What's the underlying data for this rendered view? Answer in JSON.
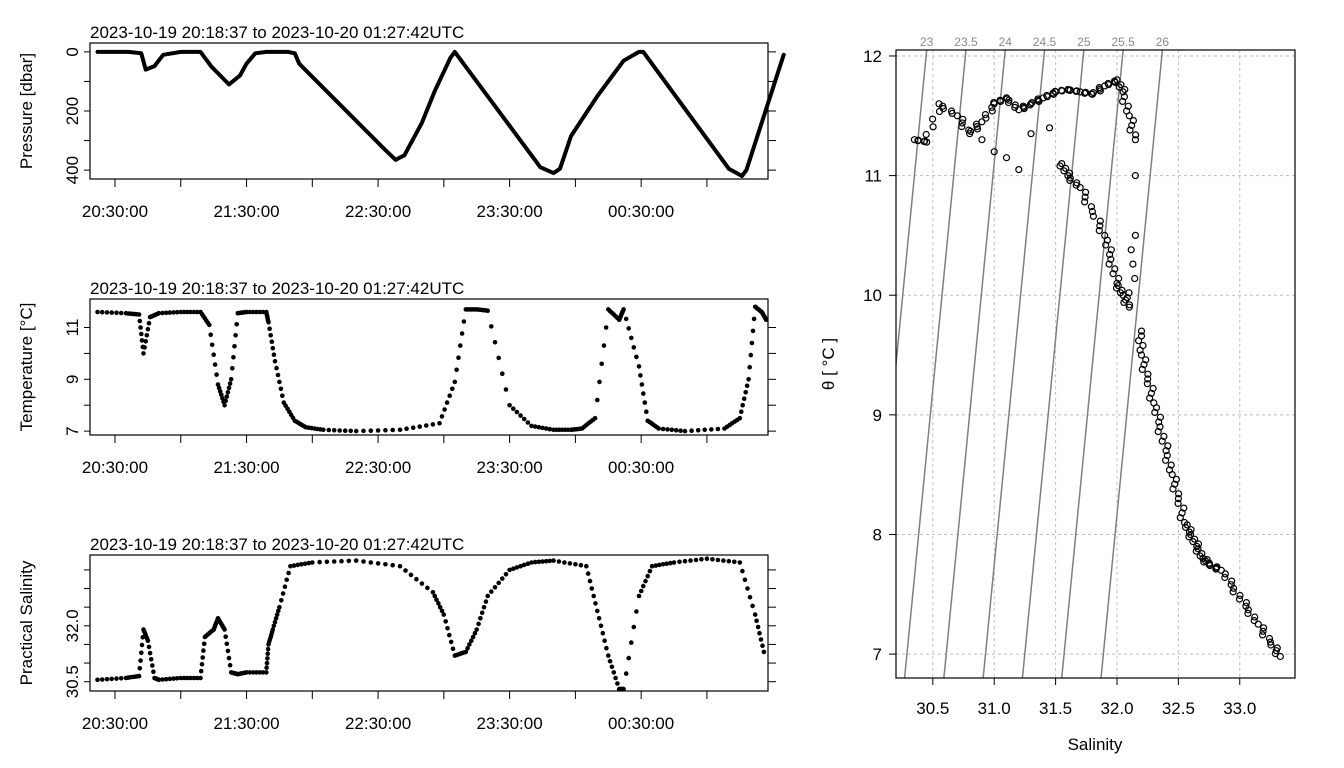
{
  "chart_data": [
    {
      "type": "line",
      "title": "2023-10-19 20:18:37 to 2023-10-20 01:27:42UTC",
      "ylabel": "Pressure [dbar]",
      "xlabel": "",
      "x_ticks": [
        "20:30:00",
        "21:30:00",
        "22:30:00",
        "23:30:00",
        "00:30:00"
      ],
      "y_ticks": [
        "0",
        "200",
        "400"
      ],
      "ylim": [
        430,
        -30
      ],
      "xlim_min": [
        -18,
        300
      ],
      "series": [
        {
          "x": [
            -8,
            6,
            12,
            14,
            18,
            22,
            30,
            39,
            44,
            48,
            52,
            57,
            60,
            64,
            69,
            79,
            82,
            84,
            123,
            128,
            132,
            140,
            146,
            153,
            155,
            194,
            200,
            203,
            208,
            220,
            232,
            239,
            241,
            280,
            286,
            288,
            305
          ],
          "y": [
            0,
            0,
            5,
            60,
            48,
            10,
            0,
            0,
            50,
            80,
            110,
            80,
            40,
            5,
            0,
            0,
            5,
            40,
            330,
            365,
            350,
            240,
            130,
            20,
            0,
            390,
            410,
            395,
            285,
            150,
            30,
            0,
            0,
            395,
            420,
            400,
            10
          ]
        }
      ]
    },
    {
      "type": "scatter",
      "title": "2023-10-19 20:18:37 to 2023-10-20 01:27:42UTC",
      "ylabel": "Temperature [°C]",
      "xlabel": "",
      "x_ticks": [
        "20:30:00",
        "21:30:00",
        "22:30:00",
        "23:30:00",
        "00:30:00"
      ],
      "y_ticks": [
        "7",
        "9",
        "11"
      ],
      "ylim": [
        6.85,
        12.1
      ],
      "series": [
        {
          "x": [
            -8,
            5,
            11,
            13,
            16,
            20,
            30,
            39,
            43,
            47,
            50,
            53,
            56,
            60,
            69,
            70,
            73,
            77,
            82,
            87,
            95,
            110,
            130,
            148,
            155,
            160,
            165,
            170,
            180,
            190,
            200,
            208,
            213,
            219,
            225,
            230,
            232,
            239,
            243,
            248,
            260,
            278,
            285,
            289,
            292,
            295,
            297
          ],
          "y": [
            11.6,
            11.55,
            11.5,
            10.0,
            11.4,
            11.55,
            11.6,
            11.6,
            11.1,
            8.8,
            8.0,
            9.0,
            11.55,
            11.6,
            11.6,
            11.2,
            9.7,
            8.1,
            7.4,
            7.15,
            7.05,
            7.0,
            7.05,
            7.3,
            8.9,
            11.7,
            11.7,
            11.65,
            8.0,
            7.2,
            7.05,
            7.05,
            7.1,
            7.5,
            11.7,
            11.3,
            11.7,
            9.5,
            7.4,
            7.1,
            7.0,
            7.1,
            7.5,
            9.0,
            11.8,
            11.6,
            11.3
          ]
        }
      ]
    },
    {
      "type": "scatter",
      "title": "2023-10-19 20:18:37 to 2023-10-20 01:27:42UTC",
      "ylabel": "Practical Salinity",
      "xlabel": "",
      "x_ticks": [
        "20:30:00",
        "21:30:00",
        "22:30:00",
        "23:30:00",
        "00:30:00"
      ],
      "y_ticks": [
        "30.5",
        "32.0"
      ],
      "ylim": [
        30.25,
        33.9
      ],
      "series": [
        {
          "x": [
            -8,
            5,
            11,
            13,
            15,
            18,
            20,
            30,
            39,
            41,
            45,
            47,
            50,
            53,
            56,
            60,
            69,
            70,
            72,
            75,
            80,
            90,
            110,
            130,
            145,
            150,
            155,
            160,
            165,
            170,
            180,
            190,
            200,
            215,
            220,
            225,
            230,
            232,
            239,
            245,
            255,
            270,
            285,
            292,
            296
          ],
          "y": [
            30.55,
            30.6,
            30.65,
            31.9,
            31.6,
            30.6,
            30.55,
            30.6,
            30.6,
            31.7,
            31.9,
            32.2,
            31.9,
            30.75,
            30.7,
            30.75,
            30.75,
            31.5,
            31.9,
            32.5,
            33.6,
            33.7,
            33.75,
            33.6,
            32.9,
            32.3,
            31.2,
            31.3,
            31.9,
            32.8,
            33.5,
            33.7,
            33.75,
            33.6,
            32.4,
            31.2,
            30.3,
            30.3,
            32.8,
            33.6,
            33.7,
            33.8,
            33.7,
            32.3,
            31.3
          ]
        }
      ]
    },
    {
      "type": "scatter",
      "title": "",
      "xlabel": "Salinity",
      "ylabel": "θ [ °C ]",
      "x_ticks": [
        "30.5",
        "31.0",
        "31.5",
        "32.0",
        "32.5",
        "33.0"
      ],
      "y_ticks": [
        "7",
        "8",
        "9",
        "10",
        "11",
        "12"
      ],
      "xlim": [
        30.2,
        33.45
      ],
      "ylim": [
        6.8,
        12.05
      ],
      "isopycnal_labels": [
        "23",
        "23.5",
        "24",
        "24.5",
        "25",
        "25.5",
        "26"
      ],
      "isopycnal_values": [
        23.0,
        23.5,
        24.0,
        24.5,
        25.0,
        25.5,
        26.0
      ],
      "grid": "on",
      "series": [
        {
          "x": [
            30.35,
            30.45,
            30.55,
            30.7,
            30.8,
            30.9,
            31.0,
            31.1,
            31.2,
            31.3,
            31.4,
            31.5,
            31.6,
            31.7,
            31.8,
            31.9,
            32.0,
            32.05,
            32.1,
            32.15,
            31.45,
            31.55,
            31.6,
            31.7,
            31.8,
            31.9,
            31.95,
            32.0,
            32.05,
            32.1,
            32.15,
            32.15,
            32.2,
            32.2,
            32.25,
            32.3,
            32.35,
            32.4,
            32.45,
            32.5,
            32.55,
            32.6,
            32.65,
            32.7,
            32.75,
            32.85,
            32.95,
            33.05,
            33.15,
            33.25,
            33.33,
            31.0,
            31.1,
            31.2,
            30.9,
            31.3
          ],
          "y": [
            11.3,
            11.28,
            11.6,
            11.5,
            11.35,
            11.45,
            11.6,
            11.65,
            11.55,
            11.6,
            11.65,
            11.7,
            11.72,
            11.7,
            11.68,
            11.75,
            11.8,
            11.7,
            11.5,
            11.3,
            11.4,
            11.1,
            11.0,
            10.9,
            10.7,
            10.5,
            10.3,
            10.1,
            10.0,
            9.9,
            10.5,
            11.0,
            9.7,
            9.5,
            9.3,
            9.1,
            8.9,
            8.7,
            8.5,
            8.3,
            8.1,
            8.0,
            7.9,
            7.8,
            7.75,
            7.7,
            7.55,
            7.4,
            7.25,
            7.1,
            6.98,
            11.2,
            11.15,
            11.05,
            11.3,
            11.35
          ]
        }
      ]
    }
  ]
}
